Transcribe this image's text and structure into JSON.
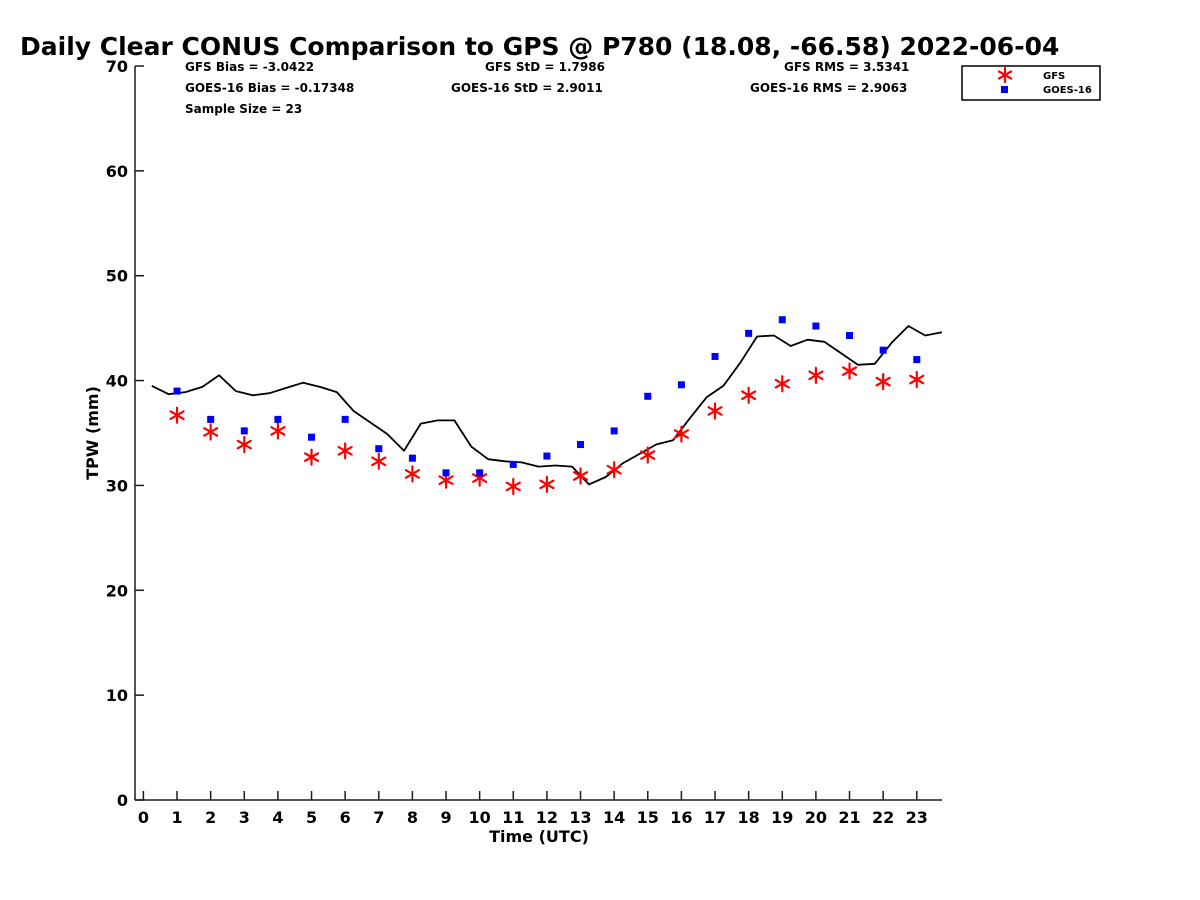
{
  "chart_data": {
    "type": "line",
    "title": "Daily Clear CONUS Comparison to GPS @ P780 (18.08, -66.58) 2022-06-04",
    "xlabel": "Time (UTC)",
    "ylabel": "TPW (mm)",
    "xlim": [
      -0.25,
      23.75
    ],
    "ylim": [
      0,
      70
    ],
    "xticks": [
      0,
      1,
      2,
      3,
      4,
      5,
      6,
      7,
      8,
      9,
      10,
      11,
      12,
      13,
      14,
      15,
      16,
      17,
      18,
      19,
      20,
      21,
      22,
      23
    ],
    "yticks": [
      0,
      10,
      20,
      30,
      40,
      50,
      60,
      70
    ],
    "grid": false,
    "legend_placement": "outside-top-right",
    "stats": {
      "gfs_bias": "GFS Bias = -3.0422",
      "goes_bias": "GOES-16 Bias = -0.17348",
      "sample_size": "Sample Size = 23",
      "gfs_std": "GFS StD = 1.7986",
      "goes_std": "GOES-16 StD = 2.9011",
      "gfs_rms": "GFS RMS = 3.5341",
      "goes_rms": "GOES-16 RMS = 2.9063"
    },
    "series": [
      {
        "name": "",
        "kind": "line",
        "color": "#000000",
        "x": [
          0.25,
          0.75,
          1.25,
          1.75,
          2.25,
          2.75,
          3.25,
          3.75,
          4.25,
          4.75,
          5.25,
          5.75,
          6.25,
          6.75,
          7.25,
          7.75,
          8.25,
          8.75,
          9.25,
          9.75,
          10.25,
          10.75,
          11.25,
          11.75,
          12.25,
          12.75,
          13.25,
          13.75,
          14.25,
          14.75,
          15.25,
          15.75,
          16.25,
          16.75,
          17.25,
          17.75,
          18.25,
          18.75,
          19.25,
          19.75,
          20.25,
          20.75,
          21.25,
          21.75,
          22.25,
          22.75,
          23.25,
          23.75
        ],
        "y": [
          39.5,
          38.7,
          38.9,
          39.4,
          40.5,
          39.0,
          38.6,
          38.8,
          39.3,
          39.8,
          39.4,
          38.9,
          37.1,
          36.0,
          34.9,
          33.3,
          35.9,
          36.2,
          36.2,
          33.7,
          32.5,
          32.3,
          32.2,
          31.8,
          31.9,
          31.8,
          30.1,
          30.8,
          32.1,
          33.0,
          33.9,
          34.3,
          36.4,
          38.4,
          39.5,
          41.7,
          44.2,
          44.3,
          43.3,
          43.9,
          43.7,
          42.6,
          41.5,
          41.6,
          43.6,
          45.2,
          44.3,
          44.6
        ]
      },
      {
        "name": "GFS",
        "kind": "asterisk",
        "color": "#ff0000",
        "x": [
          1,
          2,
          3,
          4,
          5,
          6,
          7,
          8,
          9,
          10,
          11,
          12,
          13,
          14,
          15,
          16,
          17,
          18,
          19,
          20,
          21,
          22,
          23
        ],
        "y": [
          36.7,
          35.1,
          33.9,
          35.2,
          32.7,
          33.3,
          32.3,
          31.1,
          30.5,
          30.7,
          29.9,
          30.1,
          30.9,
          31.5,
          32.9,
          34.9,
          37.1,
          38.6,
          39.7,
          40.5,
          40.9,
          39.9,
          40.1
        ]
      },
      {
        "name": "GOES-16",
        "kind": "square",
        "color": "#0000ff",
        "x": [
          1,
          2,
          3,
          4,
          5,
          6,
          7,
          8,
          9,
          10,
          11,
          12,
          13,
          14,
          15,
          16,
          17,
          18,
          19,
          20,
          21,
          22,
          23
        ],
        "y": [
          39.0,
          36.3,
          35.2,
          36.3,
          34.6,
          36.3,
          33.5,
          32.6,
          31.2,
          31.2,
          32.0,
          32.8,
          33.9,
          35.2,
          38.5,
          39.6,
          42.3,
          44.5,
          45.8,
          45.2,
          44.3,
          42.9,
          42.0
        ]
      }
    ]
  }
}
